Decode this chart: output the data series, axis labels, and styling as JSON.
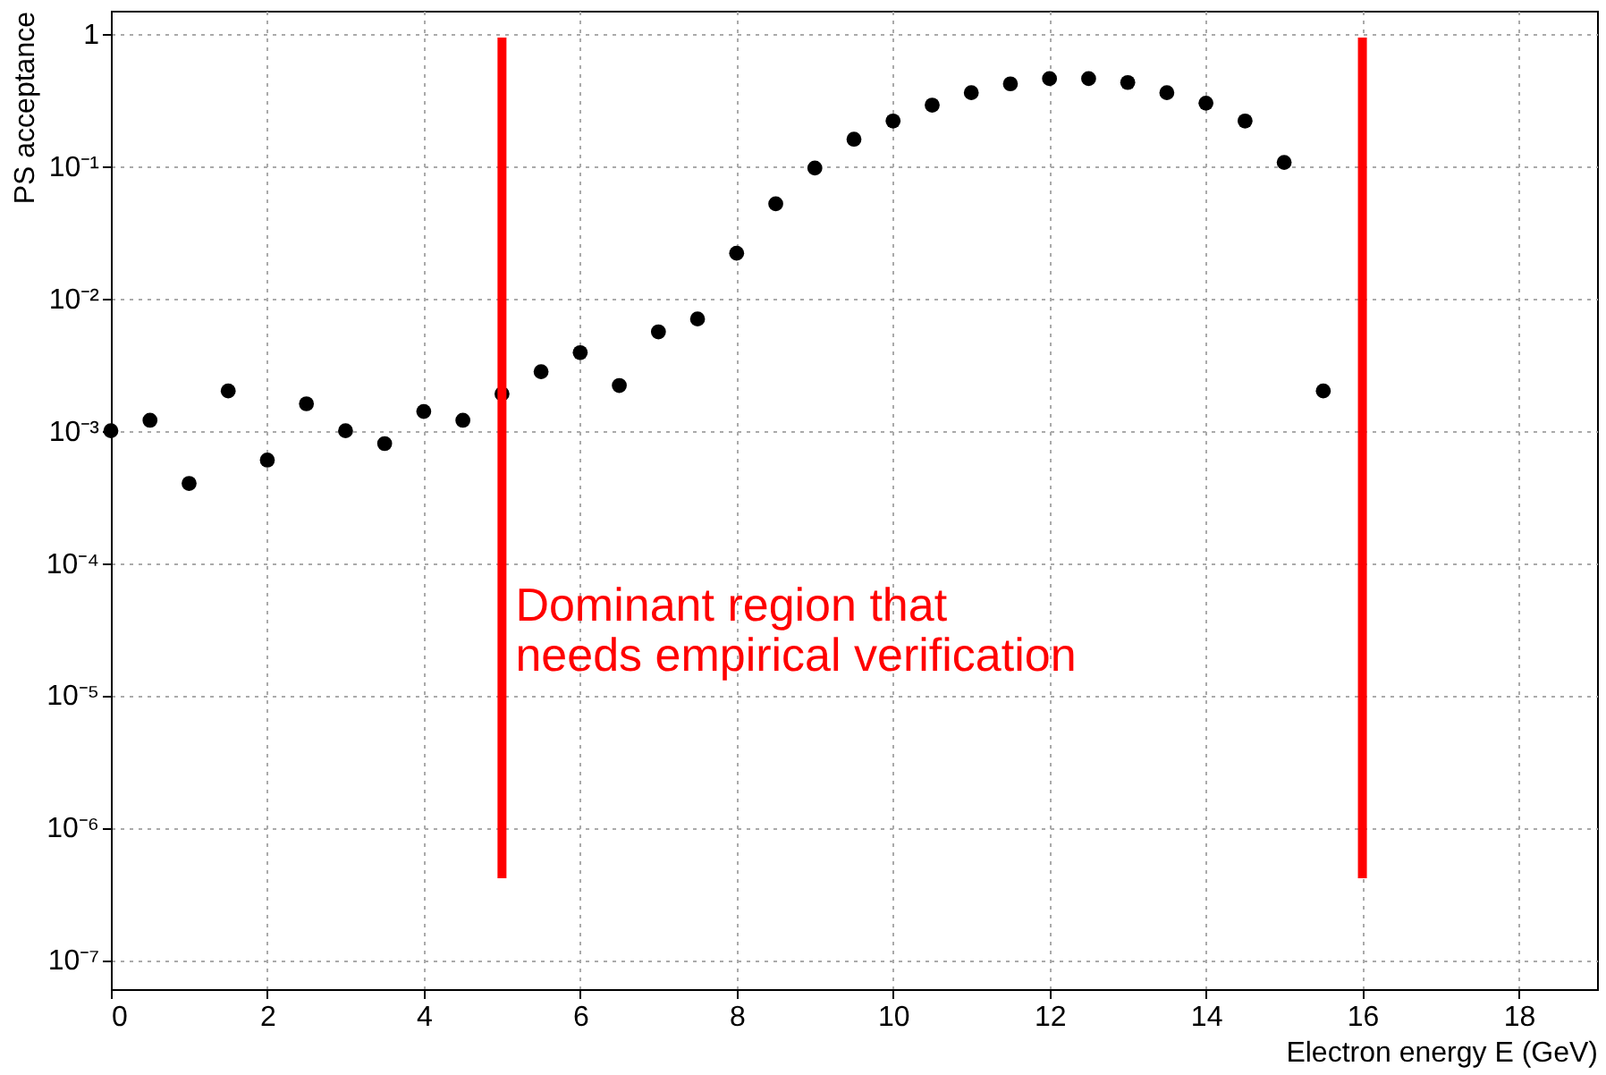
{
  "chart_data": {
    "type": "scatter",
    "xlabel": "Electron energy E (GeV)",
    "ylabel": "PS acceptance",
    "log": "y",
    "marker": "circle",
    "grid": true,
    "x": [
      0,
      0.5,
      1,
      1.5,
      2,
      2.5,
      3,
      3.5,
      4,
      4.5,
      5,
      5.5,
      6,
      6.5,
      7,
      7.5,
      8,
      8.5,
      9,
      9.5,
      10,
      10.5,
      11,
      11.5,
      12,
      12.5,
      13,
      13.5,
      14,
      14.5,
      15,
      15.5
    ],
    "series": [
      {
        "color": "#000000",
        "values": [
          0.001,
          0.0012,
          0.0004,
          0.002,
          0.0006,
          0.0016,
          0.001,
          0.0008,
          0.0014,
          0.0012,
          0.0019,
          0.0028,
          0.0039,
          0.0022,
          0.0056,
          0.007,
          0.022,
          0.052,
          0.097,
          0.16,
          0.22,
          0.29,
          0.36,
          0.42,
          0.46,
          0.46,
          0.43,
          0.36,
          0.3,
          0.22,
          0.107,
          0.002
        ]
      }
    ],
    "xlim": [
      0,
      19
    ],
    "xticks": [
      0,
      2,
      4,
      6,
      8,
      10,
      12,
      14,
      16,
      18
    ],
    "ylim": [
      6e-08,
      1.5
    ],
    "yticks": [
      {
        "value": 1e-07,
        "label": "10⁻⁷"
      },
      {
        "value": 1e-06,
        "label": "10⁻⁶"
      },
      {
        "value": 1e-05,
        "label": "10⁻⁵"
      },
      {
        "value": 0.0001,
        "label": "10⁻⁴"
      },
      {
        "value": 0.001,
        "label": "10⁻³"
      },
      {
        "value": 0.01,
        "label": "10⁻²"
      },
      {
        "value": 0.1,
        "label": "10⁻¹"
      },
      {
        "value": 1,
        "label": "1"
      }
    ],
    "ref_lines": [
      {
        "axis": "x",
        "value": 5,
        "color": "#ff0000"
      },
      {
        "axis": "x",
        "value": 16,
        "color": "#ff0000"
      }
    ],
    "annotations": [
      "Dominant region that\nneeds empirical verification"
    ]
  }
}
